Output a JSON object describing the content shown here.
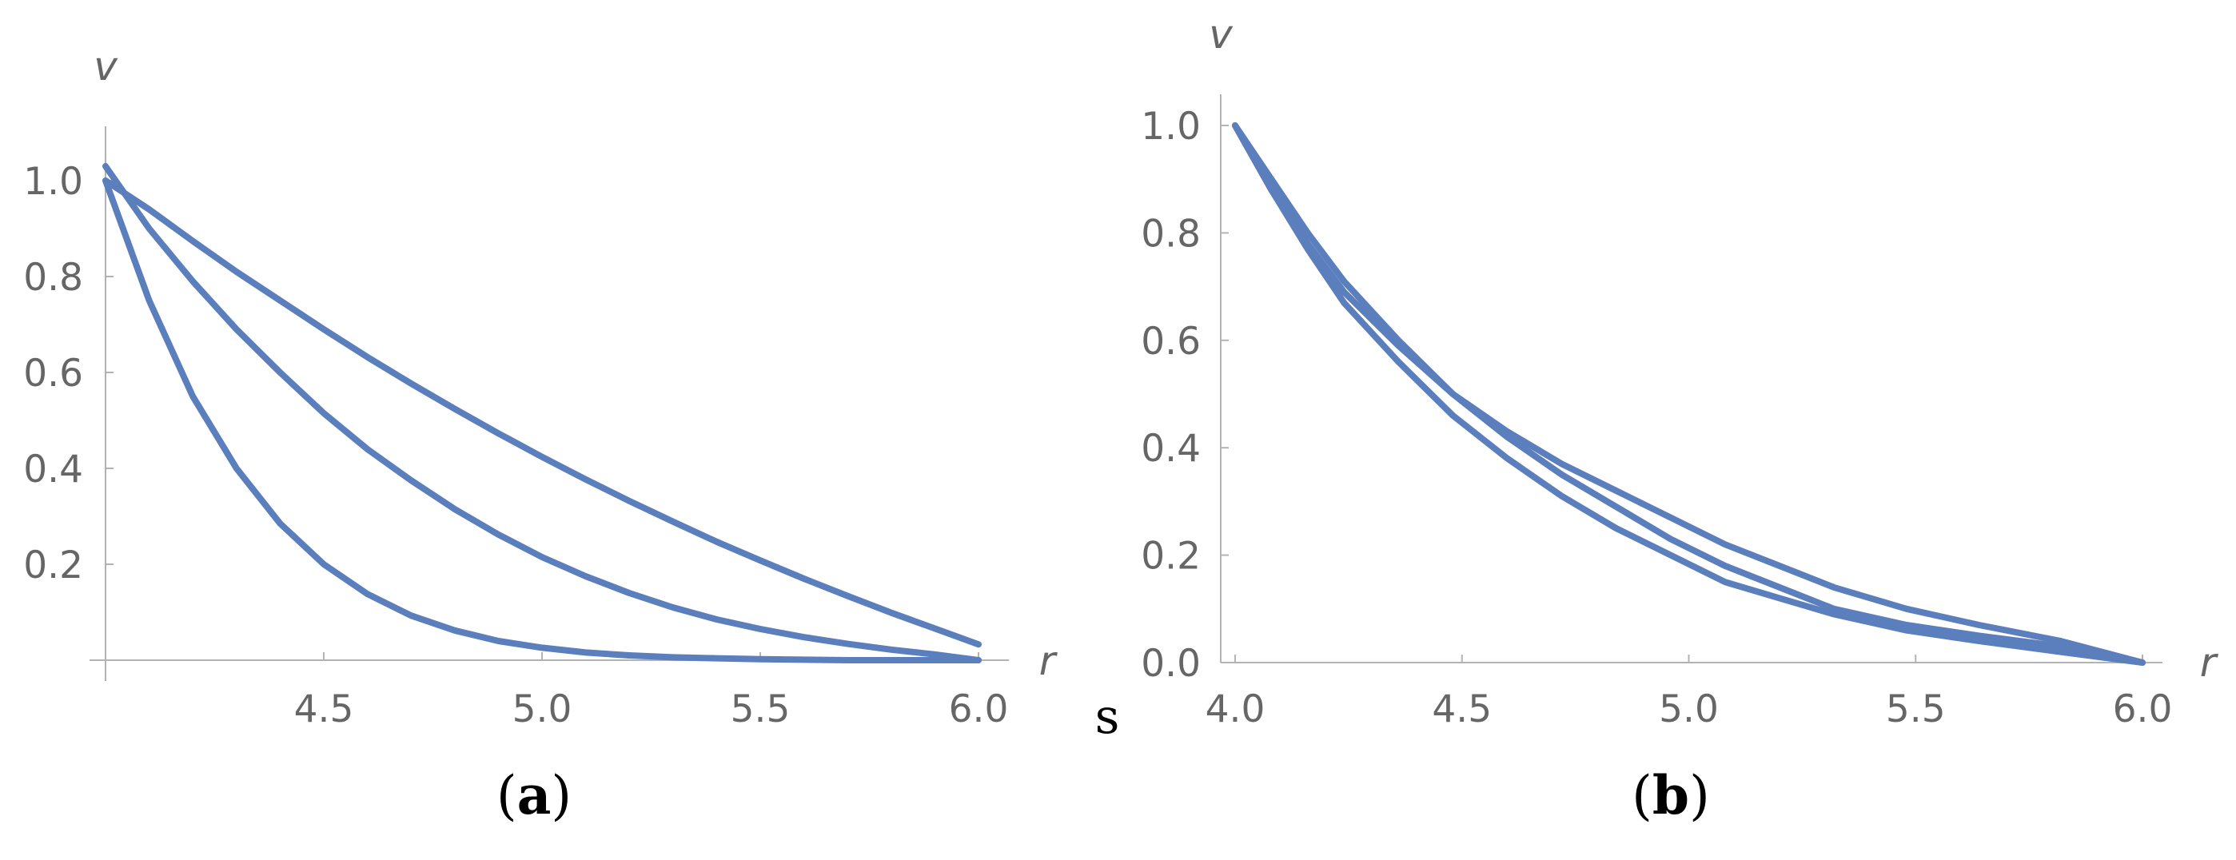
{
  "colors": {
    "series": "#5b7fbd",
    "axis": "#b3b3b3",
    "tick_text": "#666666"
  },
  "stray_text": "s",
  "chart_data": [
    {
      "type": "line",
      "panel_label": {
        "open": "(",
        "letter": "a",
        "close": ")"
      },
      "xlabel": "r",
      "ylabel": "v",
      "xlim": [
        4.0,
        6.0
      ],
      "ylim": [
        0,
        1.05
      ],
      "xticks": [
        4.5,
        5.0,
        5.5,
        6.0
      ],
      "xtick_labels": [
        "4.5",
        "5.0",
        "5.5",
        "6.0"
      ],
      "yticks": [
        0.2,
        0.4,
        0.6,
        0.8,
        1.0
      ],
      "ytick_labels": [
        "0.2",
        "0.4",
        "0.6",
        "0.8",
        "1.0"
      ],
      "series": [
        {
          "x": [
            4.0,
            4.1,
            4.2,
            4.3,
            4.4,
            4.5,
            4.6,
            4.7,
            4.8,
            4.9,
            5.0,
            5.1,
            5.2,
            5.3,
            5.4,
            5.5,
            5.6,
            5.7,
            5.8,
            5.9,
            6.0
          ],
          "y": [
            1.0,
            0.94,
            0.874,
            0.81,
            0.75,
            0.69,
            0.632,
            0.577,
            0.524,
            0.473,
            0.424,
            0.377,
            0.332,
            0.289,
            0.247,
            0.208,
            0.17,
            0.134,
            0.099,
            0.066,
            0.033
          ]
        },
        {
          "x": [
            4.0,
            4.1,
            4.2,
            4.3,
            4.4,
            4.5,
            4.6,
            4.7,
            4.8,
            4.9,
            5.0,
            5.1,
            5.2,
            5.3,
            5.4,
            5.5,
            5.6,
            5.7,
            5.8,
            5.9,
            6.0
          ],
          "y": [
            1.03,
            0.9,
            0.79,
            0.69,
            0.6,
            0.515,
            0.44,
            0.375,
            0.315,
            0.262,
            0.215,
            0.175,
            0.14,
            0.11,
            0.085,
            0.065,
            0.048,
            0.034,
            0.022,
            0.012,
            0.0
          ]
        },
        {
          "x": [
            4.0,
            4.1,
            4.2,
            4.3,
            4.4,
            4.5,
            4.6,
            4.7,
            4.8,
            4.9,
            5.0,
            5.1,
            5.2,
            5.3,
            5.4,
            5.5,
            5.6,
            5.7,
            5.8,
            5.9,
            6.0
          ],
          "y": [
            1.0,
            0.75,
            0.55,
            0.4,
            0.285,
            0.2,
            0.138,
            0.093,
            0.062,
            0.04,
            0.026,
            0.016,
            0.01,
            0.006,
            0.004,
            0.002,
            0.001,
            0.0,
            0.0,
            0.0,
            0.0
          ]
        }
      ]
    },
    {
      "type": "line",
      "panel_label": {
        "open": "(",
        "letter": "b",
        "close": ")"
      },
      "xlabel": "r",
      "ylabel": "v",
      "xlim": [
        4.0,
        6.0
      ],
      "ylim": [
        0,
        1.05
      ],
      "xticks": [
        4.0,
        4.5,
        5.0,
        5.5,
        6.0
      ],
      "xtick_labels": [
        "4.0",
        "4.5",
        "5.0",
        "5.5",
        "6.0"
      ],
      "yticks": [
        0.0,
        0.2,
        0.4,
        0.6,
        0.8,
        1.0
      ],
      "ytick_labels": [
        "0.0",
        "0.2",
        "0.4",
        "0.6",
        "0.8",
        "1.0"
      ],
      "series": [
        {
          "x": [
            4.0,
            4.08,
            4.16,
            4.24,
            4.36,
            4.48,
            4.6,
            4.72,
            4.84,
            4.96,
            5.08,
            5.2,
            5.32,
            5.48,
            5.64,
            5.82,
            6.0
          ],
          "y": [
            1.0,
            0.9,
            0.8,
            0.71,
            0.6,
            0.5,
            0.43,
            0.37,
            0.32,
            0.27,
            0.22,
            0.18,
            0.14,
            0.1,
            0.07,
            0.04,
            0.0
          ]
        },
        {
          "x": [
            4.0,
            4.08,
            4.16,
            4.24,
            4.36,
            4.48,
            4.6,
            4.72,
            4.84,
            4.96,
            5.08,
            5.2,
            5.32,
            5.48,
            5.64,
            5.82,
            6.0
          ],
          "y": [
            1.0,
            0.88,
            0.78,
            0.69,
            0.59,
            0.5,
            0.42,
            0.35,
            0.29,
            0.23,
            0.18,
            0.14,
            0.1,
            0.07,
            0.05,
            0.03,
            0.0
          ]
        },
        {
          "x": [
            4.0,
            4.08,
            4.16,
            4.24,
            4.36,
            4.48,
            4.6,
            4.72,
            4.84,
            4.96,
            5.08,
            5.2,
            5.32,
            5.48,
            5.64,
            5.82,
            6.0
          ],
          "y": [
            1.0,
            0.88,
            0.77,
            0.67,
            0.56,
            0.46,
            0.38,
            0.31,
            0.25,
            0.2,
            0.15,
            0.12,
            0.09,
            0.06,
            0.04,
            0.02,
            0.0
          ]
        }
      ]
    }
  ]
}
